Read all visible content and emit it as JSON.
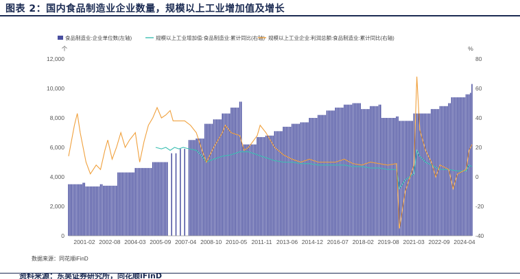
{
  "title": "图表 2：国内食品制造业企业数量，规模以上工业增加值及增长",
  "source": "数据来源：同花顺iFinD",
  "footer": "资料来源：东吴证券研究所，同花顺iFinD",
  "colors": {
    "bars": "#4a4fa0",
    "green": "#3bbfb2",
    "orange": "#f0a03c",
    "title": "#1a2a52"
  },
  "chart_data": {
    "type": "bar",
    "left_axis": {
      "unit": "个",
      "ticks": [
        0,
        2000,
        4000,
        6000,
        8000,
        10000,
        12000
      ],
      "tick_labels": [
        "0",
        "2,000",
        "4,000",
        "6,000",
        "8,000",
        "10,000",
        "12,000"
      ],
      "ylim": [
        0,
        12000
      ]
    },
    "right_axis": {
      "unit": "%",
      "ticks": [
        -40,
        -20,
        0,
        20,
        40,
        60,
        80
      ],
      "tick_labels": [
        "-40",
        "-20",
        "0",
        "20",
        "40",
        "60",
        "80"
      ],
      "ylim": [
        -40,
        80
      ]
    },
    "x_tick_labels": [
      "2001-02",
      "2002-08",
      "2004-03",
      "2005-09",
      "2007-04",
      "2008-10",
      "2010-05",
      "2011-11",
      "2013-06",
      "2014-12",
      "2016-07",
      "2018-02",
      "2019-08",
      "2021-03",
      "2022-09",
      "2024-04"
    ],
    "x_range": [
      "2001-02",
      "2024-04"
    ],
    "legend": "top-left",
    "series": [
      {
        "name": "食品制造业:企业单位数(左轴)",
        "kind": "bar",
        "axis": "left",
        "points": [
          [
            "2001-02",
            3500
          ],
          [
            "2001-12",
            3600
          ],
          [
            "2002-02",
            3350
          ],
          [
            "2002-12",
            3500
          ],
          [
            "2003-02",
            3400
          ],
          [
            "2003-12",
            4300
          ],
          [
            "2004-12",
            4600
          ],
          [
            "2005-12",
            5000
          ],
          [
            "2006-12",
            5600
          ],
          [
            "2007-06",
            5900
          ],
          [
            "2007-12",
            6500
          ],
          [
            "2008-06",
            6600
          ],
          [
            "2008-12",
            7600
          ],
          [
            "2009-06",
            7900
          ],
          [
            "2009-12",
            8300
          ],
          [
            "2010-06",
            8700
          ],
          [
            "2010-12",
            9100
          ],
          [
            "2011-02",
            6200
          ],
          [
            "2011-12",
            6700
          ],
          [
            "2012-06",
            6800
          ],
          [
            "2012-12",
            7100
          ],
          [
            "2013-06",
            7400
          ],
          [
            "2013-12",
            7600
          ],
          [
            "2014-06",
            7700
          ],
          [
            "2014-12",
            8000
          ],
          [
            "2015-06",
            8200
          ],
          [
            "2015-12",
            8500
          ],
          [
            "2016-06",
            8700
          ],
          [
            "2016-12",
            8900
          ],
          [
            "2017-06",
            9000
          ],
          [
            "2017-12",
            8600
          ],
          [
            "2018-06",
            8800
          ],
          [
            "2018-12",
            8900
          ],
          [
            "2019-02",
            8000
          ],
          [
            "2019-12",
            8100
          ],
          [
            "2020-02",
            7800
          ],
          [
            "2020-12",
            8300
          ],
          [
            "2021-06",
            8300
          ],
          [
            "2021-12",
            8600
          ],
          [
            "2022-06",
            8800
          ],
          [
            "2022-12",
            9000
          ],
          [
            "2023-02",
            9400
          ],
          [
            "2023-12",
            9600
          ],
          [
            "2024-03",
            9700
          ],
          [
            "2024-04",
            10300
          ]
        ]
      },
      {
        "name": "规模以上工业增加值:食品制造业:累计同比(右轴)",
        "kind": "line",
        "axis": "right",
        "points": [
          [
            "2006-02",
            20
          ],
          [
            "2006-06",
            19
          ],
          [
            "2006-09",
            20
          ],
          [
            "2006-12",
            18
          ],
          [
            "2007-03",
            20
          ],
          [
            "2007-06",
            19
          ],
          [
            "2007-09",
            20
          ],
          [
            "2008-01",
            19
          ],
          [
            "2008-06",
            18
          ],
          [
            "2008-10",
            14
          ],
          [
            "2009-01",
            10
          ],
          [
            "2009-06",
            12
          ],
          [
            "2009-12",
            14
          ],
          [
            "2010-06",
            15
          ],
          [
            "2010-12",
            17
          ],
          [
            "2011-06",
            17
          ],
          [
            "2011-12",
            15
          ],
          [
            "2012-06",
            13
          ],
          [
            "2012-12",
            11
          ],
          [
            "2013-06",
            10
          ],
          [
            "2013-12",
            10
          ],
          [
            "2014-06",
            9
          ],
          [
            "2014-12",
            9
          ],
          [
            "2015-06",
            8
          ],
          [
            "2015-12",
            8
          ],
          [
            "2016-06",
            8
          ],
          [
            "2016-12",
            8
          ],
          [
            "2017-06",
            7
          ],
          [
            "2017-12",
            7
          ],
          [
            "2018-06",
            6
          ],
          [
            "2018-12",
            6
          ],
          [
            "2019-06",
            5
          ],
          [
            "2019-12",
            5
          ],
          [
            "2020-02",
            -8
          ],
          [
            "2020-06",
            -2
          ],
          [
            "2020-12",
            2
          ],
          [
            "2021-02",
            18
          ],
          [
            "2021-04",
            14
          ],
          [
            "2021-08",
            10
          ],
          [
            "2021-12",
            8
          ],
          [
            "2022-06",
            5
          ],
          [
            "2022-12",
            5
          ],
          [
            "2023-06",
            4
          ],
          [
            "2023-12",
            4
          ],
          [
            "2024-02",
            8
          ],
          [
            "2024-04",
            7
          ]
        ]
      },
      {
        "name": "规模以上工业企业:利润总额:食品制造业:累计同比(右轴)",
        "kind": "line",
        "axis": "right",
        "points": [
          [
            "2001-02",
            14
          ],
          [
            "2001-06",
            35
          ],
          [
            "2001-08",
            43
          ],
          [
            "2001-10",
            30
          ],
          [
            "2002-02",
            10
          ],
          [
            "2002-05",
            2
          ],
          [
            "2002-09",
            8
          ],
          [
            "2002-12",
            5
          ],
          [
            "2003-03",
            18
          ],
          [
            "2003-05",
            25
          ],
          [
            "2003-08",
            12
          ],
          [
            "2003-11",
            20
          ],
          [
            "2004-02",
            30
          ],
          [
            "2004-05",
            20
          ],
          [
            "2004-08",
            25
          ],
          [
            "2004-12",
            30
          ],
          [
            "2005-03",
            10
          ],
          [
            "2005-06",
            24
          ],
          [
            "2005-09",
            35
          ],
          [
            "2005-12",
            40
          ],
          [
            "2006-03",
            47
          ],
          [
            "2006-06",
            40
          ],
          [
            "2006-09",
            42
          ],
          [
            "2006-12",
            45
          ],
          [
            "2007-02",
            38
          ],
          [
            "2007-06",
            38
          ],
          [
            "2007-10",
            38
          ],
          [
            "2008-02",
            35
          ],
          [
            "2008-06",
            30
          ],
          [
            "2008-10",
            18
          ],
          [
            "2009-01",
            10
          ],
          [
            "2009-06",
            20
          ],
          [
            "2009-12",
            30
          ],
          [
            "2010-02",
            35
          ],
          [
            "2010-06",
            30
          ],
          [
            "2010-12",
            28
          ],
          [
            "2011-03",
            18
          ],
          [
            "2011-06",
            20
          ],
          [
            "2011-12",
            28
          ],
          [
            "2012-02",
            35
          ],
          [
            "2012-06",
            30
          ],
          [
            "2012-12",
            20
          ],
          [
            "2013-06",
            15
          ],
          [
            "2013-12",
            12
          ],
          [
            "2014-06",
            10
          ],
          [
            "2014-12",
            12
          ],
          [
            "2015-06",
            10
          ],
          [
            "2015-12",
            10
          ],
          [
            "2016-06",
            10
          ],
          [
            "2016-12",
            12
          ],
          [
            "2017-06",
            9
          ],
          [
            "2017-12",
            8
          ],
          [
            "2018-06",
            10
          ],
          [
            "2018-12",
            9
          ],
          [
            "2019-06",
            8
          ],
          [
            "2019-12",
            9
          ],
          [
            "2020-02",
            -35
          ],
          [
            "2020-06",
            -10
          ],
          [
            "2020-12",
            8
          ],
          [
            "2021-02",
            68
          ],
          [
            "2021-04",
            32
          ],
          [
            "2021-08",
            18
          ],
          [
            "2021-12",
            10
          ],
          [
            "2022-03",
            0
          ],
          [
            "2022-06",
            8
          ],
          [
            "2022-12",
            5
          ],
          [
            "2023-03",
            -8
          ],
          [
            "2023-06",
            2
          ],
          [
            "2023-12",
            5
          ],
          [
            "2024-02",
            18
          ],
          [
            "2024-04",
            22
          ]
        ]
      }
    ]
  }
}
